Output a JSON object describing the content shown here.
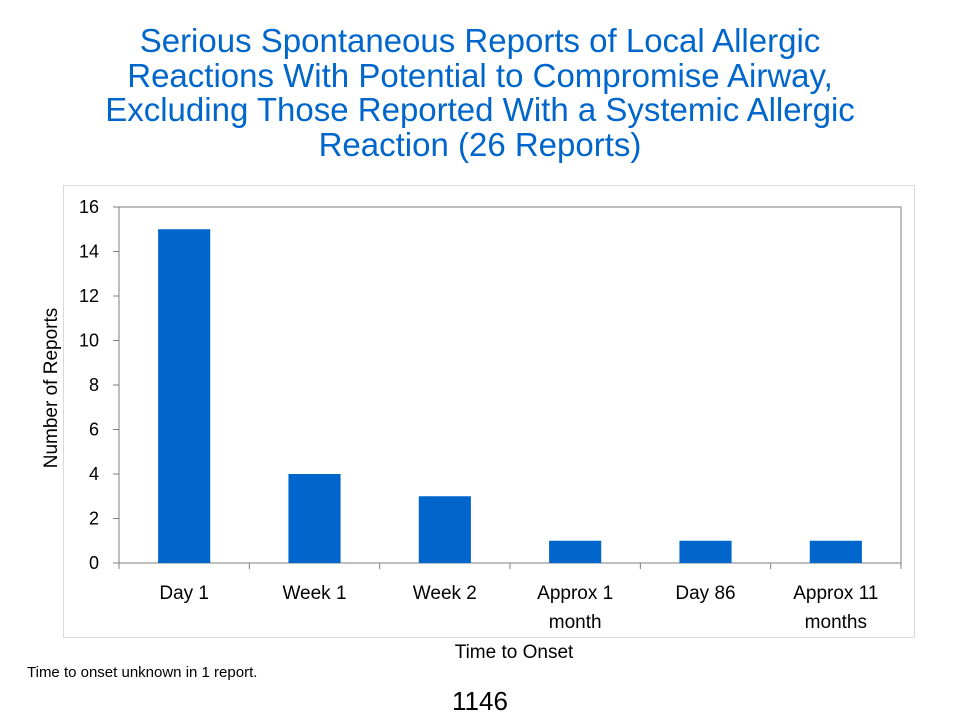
{
  "title_lines": [
    "Serious Spontaneous Reports of Local Allergic",
    "Reactions With Potential to Compromise Airway,",
    "Excluding Those Reported With a Systemic Allergic",
    "Reaction (26 Reports)"
  ],
  "footnote": "Time to onset unknown in 1 report.",
  "page_number": "1146",
  "colors": {
    "title": "#0066cc",
    "bar": "#0066cc"
  },
  "chart_data": {
    "type": "bar",
    "title": "Serious Spontaneous Reports of Local Allergic Reactions With Potential to Compromise Airway, Excluding Those Reported With a Systemic Allergic Reaction (26 Reports)",
    "categories": [
      [
        "Day 1"
      ],
      [
        "Week 1"
      ],
      [
        "Week 2"
      ],
      [
        "Approx 1",
        "month"
      ],
      [
        "Day 86"
      ],
      [
        "Approx 11",
        "months"
      ]
    ],
    "values": [
      15,
      4,
      3,
      1,
      1,
      1
    ],
    "xlabel": "Time to Onset",
    "ylabel": "Number of Reports",
    "ylim": [
      0,
      16
    ],
    "yticks": [
      0,
      2,
      4,
      6,
      8,
      10,
      12,
      14,
      16
    ],
    "grid": false,
    "legend": "none"
  }
}
